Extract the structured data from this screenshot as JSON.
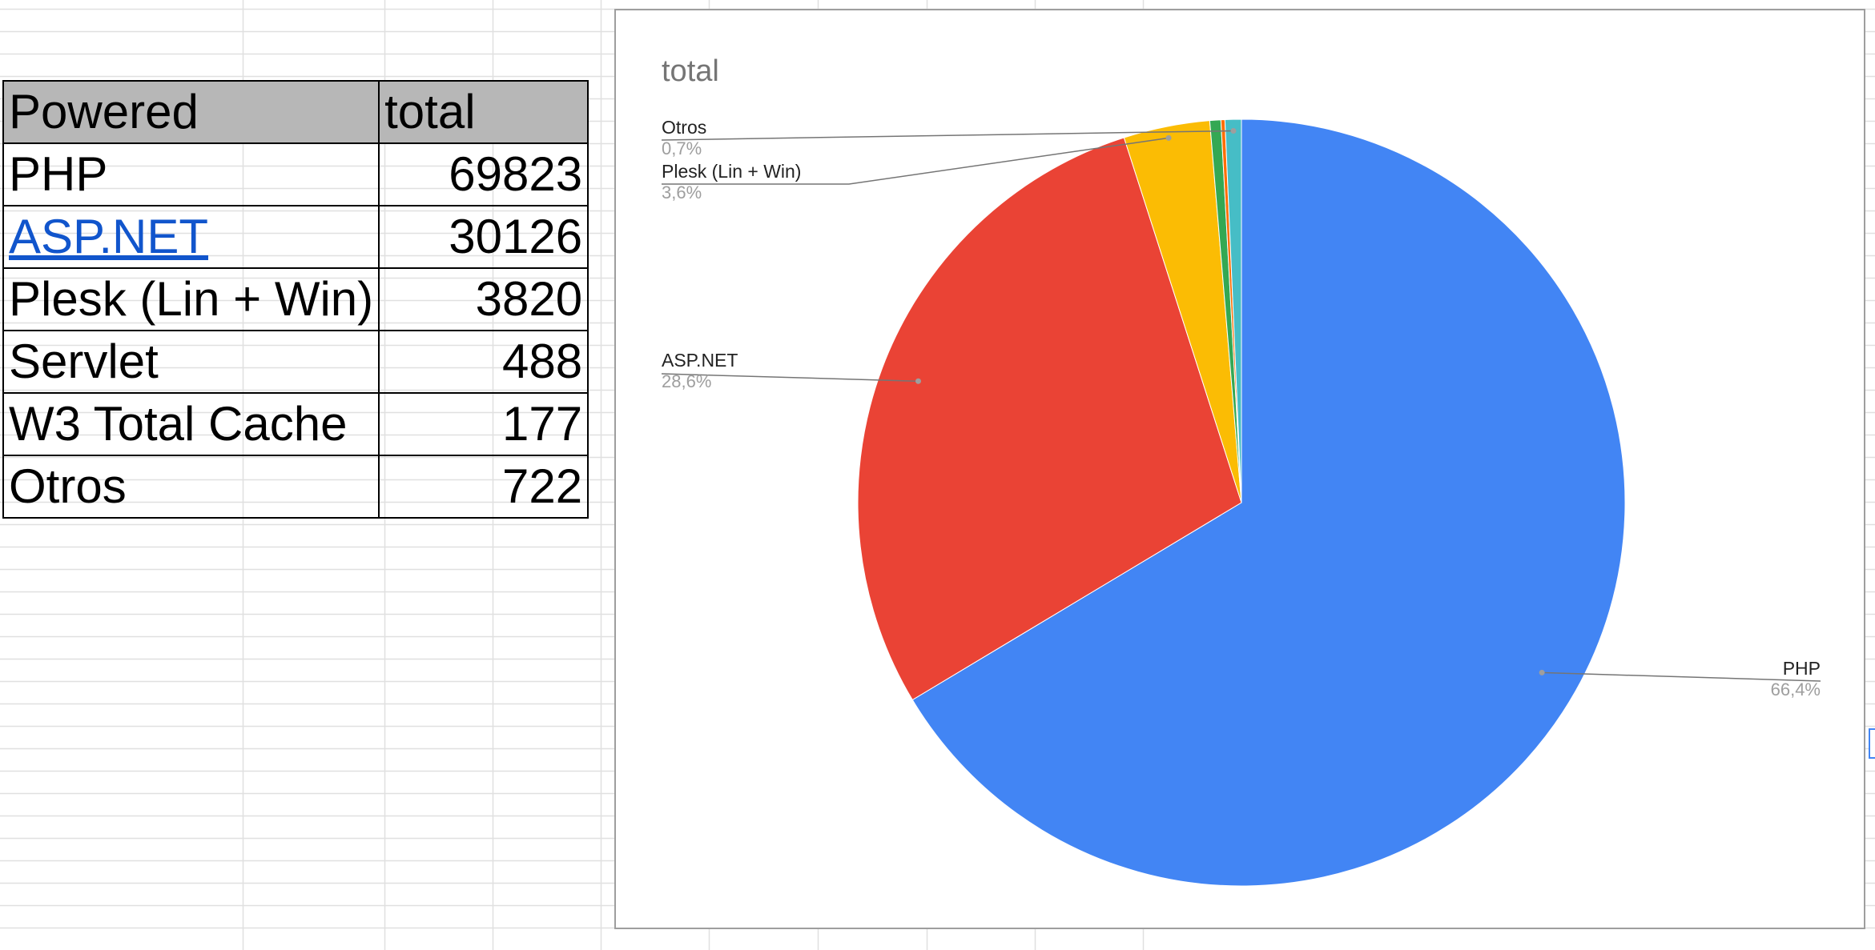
{
  "table": {
    "headers": [
      "Powered",
      "total"
    ],
    "rows": [
      {
        "label": "PHP",
        "value": "69823"
      },
      {
        "label": "ASP.NET",
        "value": "30126"
      },
      {
        "label": "Plesk (Lin + Win)",
        "value": "3820"
      },
      {
        "label": "Servlet",
        "value": "488"
      },
      {
        "label": "W3 Total Cache",
        "value": "177"
      },
      {
        "label": "Otros",
        "value": "722"
      }
    ]
  },
  "chart_data": {
    "type": "pie",
    "title": "total",
    "categories": [
      "PHP",
      "ASP.NET",
      "Plesk (Lin + Win)",
      "Servlet",
      "W3 Total Cache",
      "Otros"
    ],
    "values": [
      69823,
      30126,
      3820,
      488,
      177,
      722
    ],
    "colors": [
      "#4285f4",
      "#ea4335",
      "#fbbc04",
      "#34a853",
      "#ff6d01",
      "#46bdc6"
    ],
    "data_labels": [
      {
        "name": "PHP",
        "percent": "66,4%"
      },
      {
        "name": "ASP.NET",
        "percent": "28,6%"
      },
      {
        "name": "Plesk (Lin + Win)",
        "percent": "3,6%"
      },
      {
        "name": "Otros",
        "percent": "0,7%"
      }
    ]
  }
}
